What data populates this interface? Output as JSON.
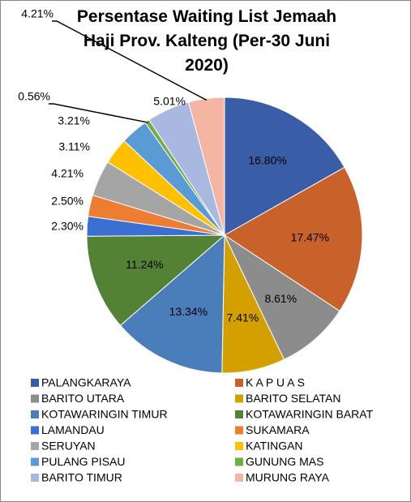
{
  "chart_data": {
    "type": "pie",
    "title": "Persentase Waiting List Jemaah Haji Prov. Kalteng (Per-30 Juni 2020)",
    "categories": [
      "PALANGKARAYA",
      "K A P U A S",
      "BARITO UTARA",
      "BARITO SELATAN",
      "KOTAWARINGIN TIMUR",
      "KOTAWARINGIN BARAT",
      "LAMANDAU",
      "SUKAMARA",
      "SERUYAN",
      "KATINGAN",
      "PULANG PISAU",
      "GUNUNG MAS",
      "BARITO TIMUR",
      "MURUNG RAYA"
    ],
    "values": [
      16.8,
      17.47,
      8.61,
      7.41,
      13.34,
      11.24,
      2.3,
      2.5,
      4.21,
      3.11,
      3.21,
      0.56,
      5.01,
      4.21
    ],
    "value_labels": [
      "16.80%",
      "17.47%",
      "8.61%",
      "7.41%",
      "13.34%",
      "11.24%",
      "2.30%",
      "2.50%",
      "4.21%",
      "3.11%",
      "3.21%",
      "0.56%",
      "5.01%",
      "4.21%"
    ],
    "colors": [
      "#3A5DA8",
      "#C8622A",
      "#8C8C8C",
      "#D4A000",
      "#4A7EBB",
      "#548235",
      "#3B6FD1",
      "#ED7D31",
      "#A5A5A5",
      "#FFC000",
      "#5B9BD5",
      "#70AD47",
      "#A9B8E0",
      "#F4B6A2"
    ],
    "legend": "bottom"
  }
}
